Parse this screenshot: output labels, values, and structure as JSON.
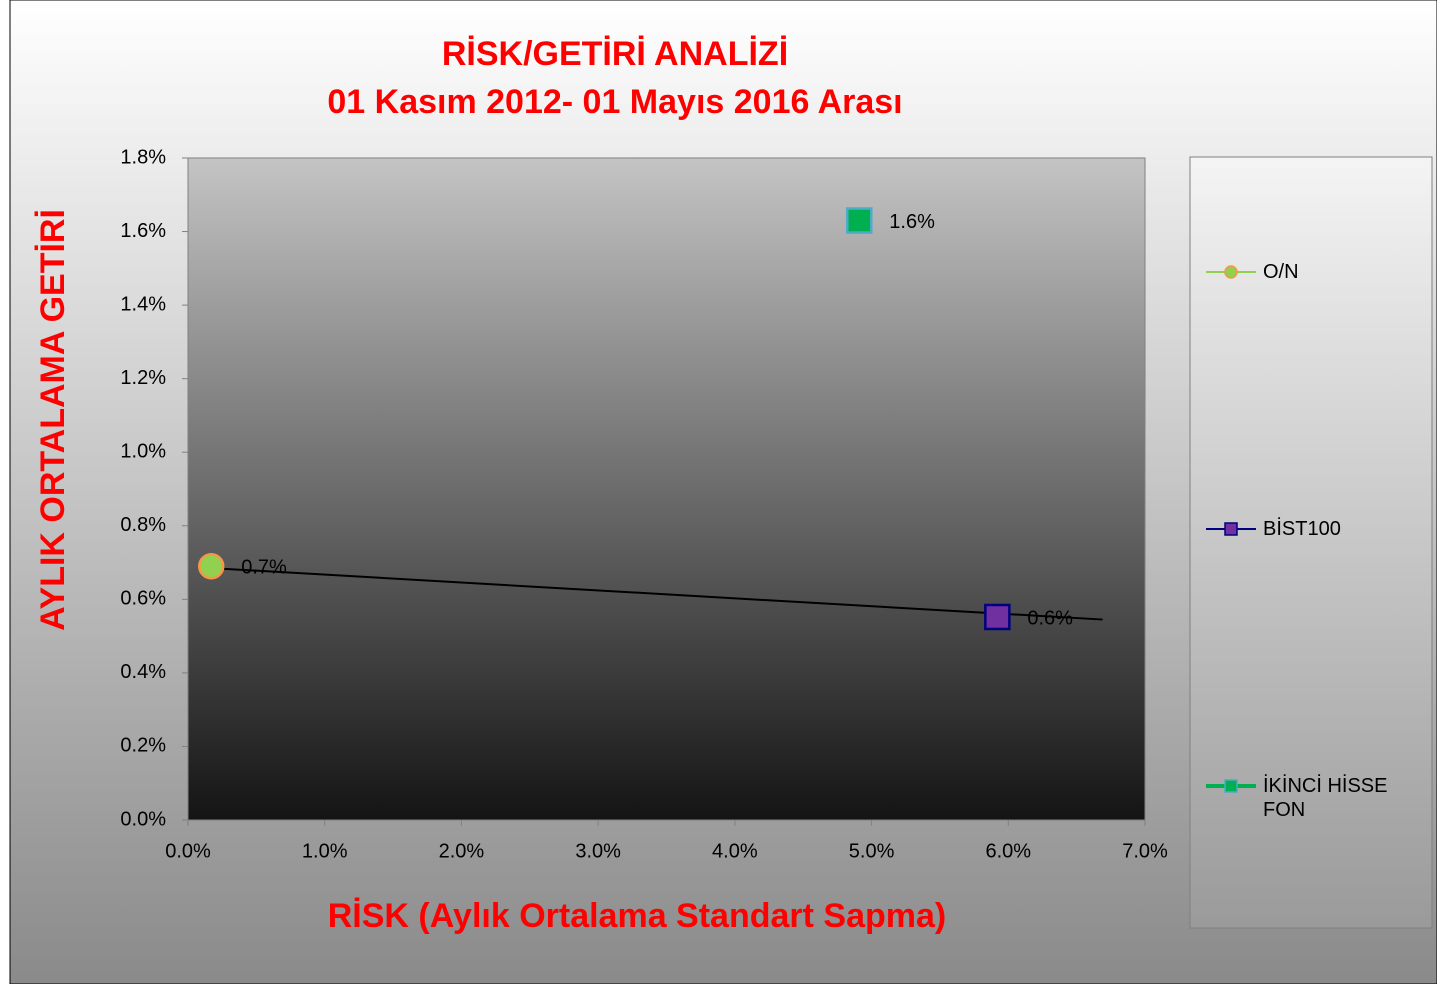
{
  "chart_data": {
    "type": "scatter",
    "title": "RİSK/GETİRİ ANALİZİ",
    "subtitle": "01 Kasım 2012- 01 Mayıs 2016 Arası",
    "x_label": "RİSK (Aylık Ortalama Standart Sapma)",
    "y_label": "AYLIK ORTALAMA GETİRİ",
    "xlim": [
      0,
      7
    ],
    "xticks": [
      {
        "value": 0,
        "label": "0.0%"
      },
      {
        "value": 1,
        "label": "1.0%"
      },
      {
        "value": 2,
        "label": "2.0%"
      },
      {
        "value": 3,
        "label": "3.0%"
      },
      {
        "value": 4,
        "label": "4.0%"
      },
      {
        "value": 5,
        "label": "5.0%"
      },
      {
        "value": 6,
        "label": "6.0%"
      },
      {
        "value": 7,
        "label": "7.0%"
      }
    ],
    "ylim": [
      0,
      1.8
    ],
    "yticks": [
      {
        "value": 0,
        "label": "0.0%"
      },
      {
        "value": 0.2,
        "label": "0.2%"
      },
      {
        "value": 0.4,
        "label": "0.4%"
      },
      {
        "value": 0.6,
        "label": "0.6%"
      },
      {
        "value": 0.8,
        "label": "0.8%"
      },
      {
        "value": 1,
        "label": "1.0%"
      },
      {
        "value": 1.2,
        "label": "1.2%"
      },
      {
        "value": 1.4,
        "label": "1.4%"
      },
      {
        "value": 1.6,
        "label": "1.6%"
      },
      {
        "value": 1.8,
        "label": "1.8%"
      }
    ],
    "legend": "right",
    "series": [
      {
        "name": "O/N",
        "marker": "circle",
        "color": "#92d050",
        "edge_color": "#f79646",
        "line_color": "#92d050",
        "x": [
          0.17
        ],
        "values": [
          0.69
        ],
        "value_labels": [
          "0.7%"
        ]
      },
      {
        "name": "BİST100",
        "marker": "square",
        "color": "#7030a0",
        "edge_color": "#000080",
        "line_color": "#000080",
        "x": [
          5.92
        ],
        "values": [
          0.552
        ],
        "value_labels": [
          "0.6%"
        ]
      },
      {
        "name": "İKİNCİ HİSSE FON",
        "marker": "square",
        "color": "#00b050",
        "edge_color": "#4bacc6",
        "line_color": "#00b050",
        "x": [
          4.91
        ],
        "values": [
          1.63
        ],
        "value_labels": [
          "1.6%"
        ]
      }
    ],
    "trendline": {
      "color": "#000000",
      "x": [
        0.17,
        6.69
      ],
      "values": [
        0.685,
        0.545
      ]
    }
  }
}
